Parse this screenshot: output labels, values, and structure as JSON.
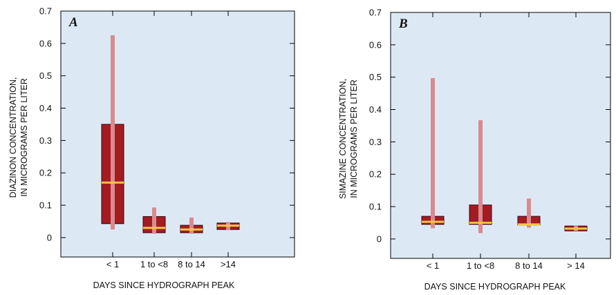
{
  "colors": {
    "plot_background": "#dce9f5",
    "box_fill": "#a31c22",
    "whisker": "#d98a8e",
    "median": "#f6c743"
  },
  "chart_data": [
    {
      "type": "box",
      "panel_label": "A",
      "xlabel": "DAYS SINCE HYDROGRAPH PEAK",
      "ylabel_lines": [
        "DIAZINON CONCENTRATION,",
        "IN MICROGRAMS PER LITER"
      ],
      "ylim": [
        -0.06,
        0.7
      ],
      "yticks": [
        0,
        0.1,
        0.2,
        0.3,
        0.4,
        0.5,
        0.6,
        0.7
      ],
      "ytick_labels": [
        "0",
        "0.1",
        "0.2",
        "0.3",
        "0.4",
        "0.5",
        "0.6",
        "0.7"
      ],
      "categories": [
        "< 1",
        "1 to <8",
        "8 to 14",
        ">14"
      ],
      "boxes": [
        {
          "min": 0.025,
          "q1": 0.043,
          "median": 0.17,
          "q3": 0.35,
          "max": 0.625
        },
        {
          "min": 0.012,
          "q1": 0.015,
          "median": 0.03,
          "q3": 0.065,
          "max": 0.093
        },
        {
          "min": 0.012,
          "q1": 0.015,
          "median": 0.025,
          "q3": 0.038,
          "max": 0.062
        },
        {
          "min": 0.023,
          "q1": 0.025,
          "median": 0.037,
          "q3": 0.045,
          "max": 0.048
        }
      ]
    },
    {
      "type": "box",
      "panel_label": "B",
      "xlabel": "DAYS SINCE HYDROGRAPH PEAK",
      "ylabel_lines": [
        "SIMAZINE CONCENTRATION,",
        "IN MICROGRAMS PER LITER"
      ],
      "ylim": [
        -0.06,
        0.7
      ],
      "yticks": [
        0,
        0.1,
        0.2,
        0.3,
        0.4,
        0.5,
        0.6,
        0.7
      ],
      "ytick_labels": [
        "0",
        "0.1",
        "0.2",
        "0.3",
        "0.4",
        "0.5",
        "0.6",
        "0.7"
      ],
      "categories": [
        "< 1",
        "1 to <8",
        "8 to 14",
        "> 14"
      ],
      "boxes": [
        {
          "min": 0.033,
          "q1": 0.045,
          "median": 0.053,
          "q3": 0.07,
          "max": 0.497
        },
        {
          "min": 0.018,
          "q1": 0.045,
          "median": 0.05,
          "q3": 0.105,
          "max": 0.367
        },
        {
          "min": 0.035,
          "q1": 0.043,
          "median": 0.045,
          "q3": 0.07,
          "max": 0.125
        },
        {
          "min": 0.025,
          "q1": 0.025,
          "median": 0.032,
          "q3": 0.04,
          "max": 0.042
        }
      ]
    }
  ]
}
